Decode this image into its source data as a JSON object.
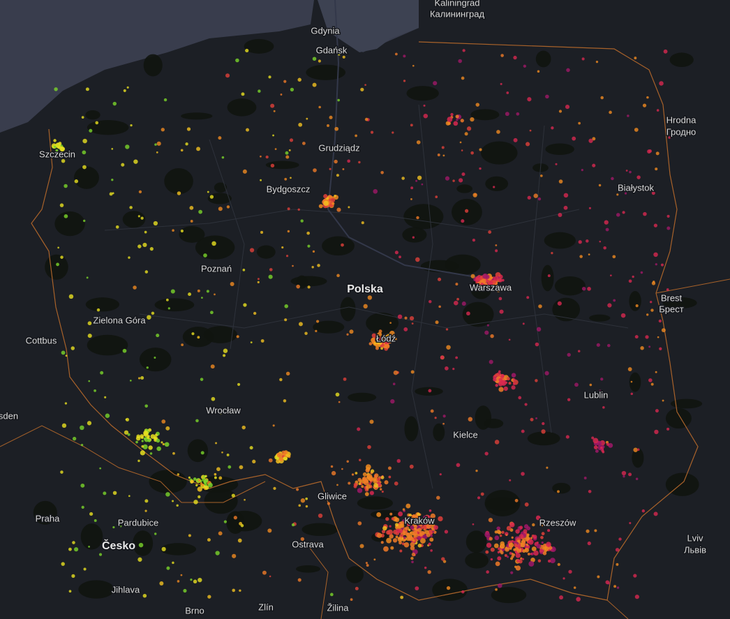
{
  "map": {
    "labels": [
      "Kaliningrad",
      "Калининград",
      "Gdynia",
      "Gdańsk",
      "Szczecin",
      "Grudziądz",
      "Bydgoszcz",
      "Hrodna",
      "Гродно",
      "Białystok",
      "Poznań",
      "Polska",
      "Warszawa",
      "Brest",
      "Брест",
      "Zielona Góra",
      "Cottbus",
      "Łódź",
      "Lublin",
      "Wrocław",
      "sden",
      "Kielce",
      "Gliwice",
      "Kraków",
      "Rzeszów",
      "Praha",
      "Pardubice",
      "Česko",
      "Ostrava",
      "Lviv",
      "Львів",
      "Jihlava",
      "Brno",
      "Zlín",
      "Žilina"
    ]
  }
}
